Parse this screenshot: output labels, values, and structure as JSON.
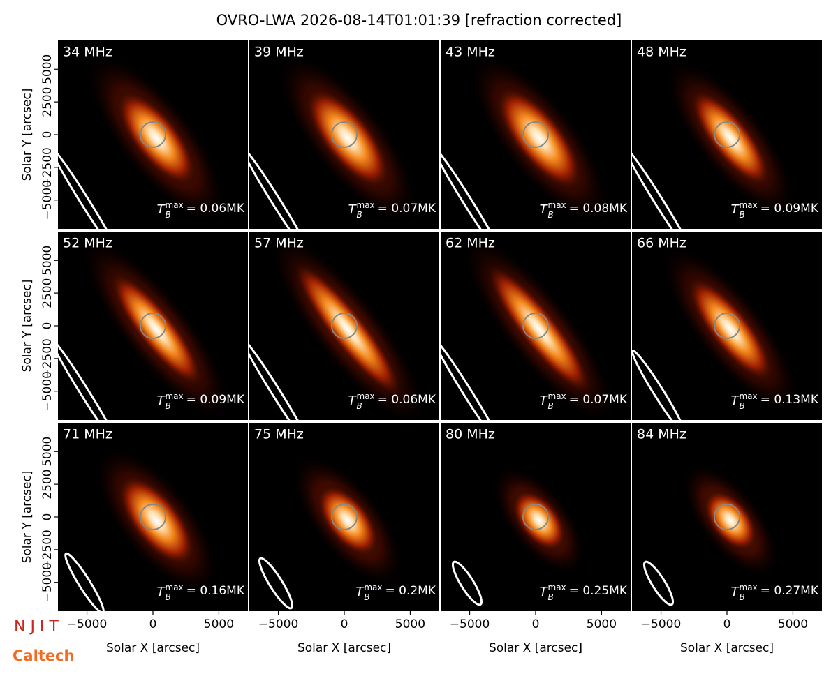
{
  "chart_data": {
    "type": "image-grid",
    "title": "OVRO-LWA 2026-08-14T01:01:39 [refraction corrected]",
    "xlabel": "Solar X [arcsec]",
    "ylabel": "Solar Y [arcsec]",
    "xlim": [
      -7200,
      7200
    ],
    "ylim": [
      -7200,
      7200
    ],
    "xticks": [
      {
        "value": -5000,
        "label": "−5000"
      },
      0,
      5000
    ],
    "yticks": [
      {
        "value": -5000,
        "label": "−5000"
      },
      {
        "value": -2500,
        "label": "−2500"
      },
      0,
      2500,
      5000
    ],
    "tb_symbol": "T",
    "tb_sub": "B",
    "tb_sup": "max",
    "panels": [
      {
        "freq": "34 MHz",
        "tb_max": "= 0.06MK"
      },
      {
        "freq": "39 MHz",
        "tb_max": "= 0.07MK"
      },
      {
        "freq": "43 MHz",
        "tb_max": "= 0.08MK"
      },
      {
        "freq": "48 MHz",
        "tb_max": "= 0.09MK"
      },
      {
        "freq": "52 MHz",
        "tb_max": "= 0.09MK"
      },
      {
        "freq": "57 MHz",
        "tb_max": "= 0.06MK"
      },
      {
        "freq": "62 MHz",
        "tb_max": "= 0.07MK"
      },
      {
        "freq": "66 MHz",
        "tb_max": "= 0.13MK"
      },
      {
        "freq": "71 MHz",
        "tb_max": "= 0.16MK"
      },
      {
        "freq": "75 MHz",
        "tb_max": "= 0.2MK"
      },
      {
        "freq": "80 MHz",
        "tb_max": "= 0.25MK"
      },
      {
        "freq": "84 MHz",
        "tb_max": "= 0.27MK"
      }
    ]
  },
  "logos": {
    "njit": "N J I T",
    "caltech": "Caltech"
  }
}
